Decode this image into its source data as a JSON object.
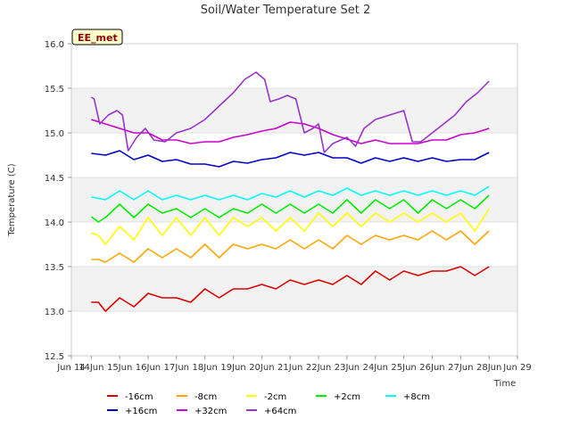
{
  "chart_data": {
    "type": "line",
    "title": "Soil/Water Temperature Set 2",
    "site_label": "EE_met",
    "xlabel": "Time",
    "ylabel": "Temperature (C)",
    "xlim": [
      13.3,
      29.0
    ],
    "ylim": [
      12.5,
      16.0
    ],
    "x_ticks": [
      13.3,
      14,
      15,
      16,
      17,
      18,
      19,
      20,
      21,
      22,
      23,
      24,
      25,
      26,
      27,
      28,
      29
    ],
    "x_tick_labels": [
      "Jun 14",
      "14Jun",
      "15Jun",
      "16Jun",
      "17Jun",
      "18Jun",
      "19Jun",
      "20Jun",
      "21Jun",
      "22Jun",
      "23Jun",
      "24Jun",
      "25Jun",
      "26Jun",
      "27Jun",
      "28Jun",
      "Jun 29"
    ],
    "y_ticks": [
      12.5,
      13.0,
      13.5,
      14.0,
      14.5,
      15.0,
      15.5,
      16.0
    ],
    "y_tick_labels": [
      "12.5",
      "13.0",
      "13.5",
      "14.0",
      "14.5",
      "15.0",
      "15.5",
      "16.0"
    ],
    "grid": "horizontal bands",
    "legend_position": "bottom",
    "series": [
      {
        "name": "-16cm",
        "color": "#dd0000",
        "x": [
          14.0,
          14.25,
          14.5,
          15.0,
          15.5,
          16.0,
          16.5,
          17.0,
          17.5,
          18.0,
          18.5,
          19.0,
          19.5,
          20.0,
          20.5,
          21.0,
          21.5,
          22.0,
          22.5,
          23.0,
          23.5,
          24.0,
          24.5,
          25.0,
          25.5,
          26.0,
          26.5,
          27.0,
          27.5,
          28.0
        ],
        "y": [
          13.1,
          13.1,
          13.0,
          13.15,
          13.05,
          13.2,
          13.15,
          13.15,
          13.1,
          13.25,
          13.15,
          13.25,
          13.25,
          13.3,
          13.25,
          13.35,
          13.3,
          13.35,
          13.3,
          13.4,
          13.3,
          13.45,
          13.35,
          13.45,
          13.4,
          13.45,
          13.45,
          13.5,
          13.4,
          13.5
        ]
      },
      {
        "name": "-8cm",
        "color": "#ffa500",
        "x": [
          14.0,
          14.25,
          14.5,
          15.0,
          15.5,
          16.0,
          16.5,
          17.0,
          17.5,
          18.0,
          18.5,
          19.0,
          19.5,
          20.0,
          20.5,
          21.0,
          21.5,
          22.0,
          22.5,
          23.0,
          23.5,
          24.0,
          24.5,
          25.0,
          25.5,
          26.0,
          26.5,
          27.0,
          27.5,
          28.0
        ],
        "y": [
          13.58,
          13.58,
          13.55,
          13.65,
          13.55,
          13.7,
          13.6,
          13.7,
          13.6,
          13.75,
          13.6,
          13.75,
          13.7,
          13.75,
          13.7,
          13.8,
          13.7,
          13.8,
          13.7,
          13.85,
          13.75,
          13.85,
          13.8,
          13.85,
          13.8,
          13.9,
          13.8,
          13.9,
          13.75,
          13.9
        ]
      },
      {
        "name": "-2cm",
        "color": "#ffff00",
        "x": [
          14.0,
          14.25,
          14.5,
          15.0,
          15.5,
          16.0,
          16.5,
          17.0,
          17.5,
          18.0,
          18.5,
          19.0,
          19.5,
          20.0,
          20.5,
          21.0,
          21.5,
          22.0,
          22.5,
          23.0,
          23.5,
          24.0,
          24.5,
          25.0,
          25.5,
          26.0,
          26.5,
          27.0,
          27.5,
          28.0
        ],
        "y": [
          13.88,
          13.85,
          13.75,
          13.95,
          13.8,
          14.05,
          13.85,
          14.05,
          13.85,
          14.05,
          13.85,
          14.05,
          13.95,
          14.05,
          13.9,
          14.05,
          13.9,
          14.1,
          13.95,
          14.1,
          13.95,
          14.1,
          14.0,
          14.1,
          14.0,
          14.1,
          14.0,
          14.1,
          13.9,
          14.15
        ]
      },
      {
        "name": "+2cm",
        "color": "#00ee00",
        "x": [
          14.0,
          14.25,
          14.5,
          15.0,
          15.5,
          16.0,
          16.5,
          17.0,
          17.5,
          18.0,
          18.5,
          19.0,
          19.5,
          20.0,
          20.5,
          21.0,
          21.5,
          22.0,
          22.5,
          23.0,
          23.5,
          24.0,
          24.5,
          25.0,
          25.5,
          26.0,
          26.5,
          27.0,
          27.5,
          28.0
        ],
        "y": [
          14.06,
          14.0,
          14.05,
          14.2,
          14.05,
          14.2,
          14.1,
          14.15,
          14.05,
          14.15,
          14.05,
          14.15,
          14.1,
          14.2,
          14.1,
          14.2,
          14.1,
          14.2,
          14.1,
          14.25,
          14.1,
          14.25,
          14.15,
          14.25,
          14.1,
          14.25,
          14.15,
          14.25,
          14.15,
          14.3
        ]
      },
      {
        "name": "+8cm",
        "color": "#00ffff",
        "x": [
          14.0,
          14.5,
          15.0,
          15.5,
          16.0,
          16.5,
          17.0,
          17.5,
          18.0,
          18.5,
          19.0,
          19.5,
          20.0,
          20.5,
          21.0,
          21.5,
          22.0,
          22.5,
          23.0,
          23.5,
          24.0,
          24.5,
          25.0,
          25.5,
          26.0,
          26.5,
          27.0,
          27.5,
          28.0
        ],
        "y": [
          14.28,
          14.25,
          14.35,
          14.25,
          14.35,
          14.25,
          14.3,
          14.25,
          14.3,
          14.25,
          14.3,
          14.25,
          14.32,
          14.28,
          14.35,
          14.28,
          14.35,
          14.3,
          14.38,
          14.3,
          14.35,
          14.3,
          14.35,
          14.3,
          14.35,
          14.3,
          14.35,
          14.3,
          14.4
        ]
      },
      {
        "name": "+16cm",
        "color": "#0000cc",
        "x": [
          14.0,
          14.5,
          15.0,
          15.5,
          16.0,
          16.5,
          17.0,
          17.5,
          18.0,
          18.5,
          19.0,
          19.5,
          20.0,
          20.5,
          21.0,
          21.5,
          22.0,
          22.5,
          23.0,
          23.5,
          24.0,
          24.5,
          25.0,
          25.5,
          26.0,
          26.5,
          27.0,
          27.5,
          28.0
        ],
        "y": [
          14.77,
          14.75,
          14.8,
          14.7,
          14.75,
          14.68,
          14.7,
          14.65,
          14.65,
          14.62,
          14.68,
          14.66,
          14.7,
          14.72,
          14.78,
          14.75,
          14.78,
          14.72,
          14.72,
          14.66,
          14.72,
          14.68,
          14.72,
          14.68,
          14.72,
          14.68,
          14.7,
          14.7,
          14.78
        ]
      },
      {
        "name": "+32cm",
        "color": "#cc00cc",
        "x": [
          14.0,
          14.5,
          15.0,
          15.5,
          16.0,
          16.5,
          17.0,
          17.5,
          18.0,
          18.5,
          19.0,
          19.5,
          20.0,
          20.5,
          21.0,
          21.5,
          22.0,
          22.5,
          23.0,
          23.5,
          24.0,
          24.5,
          25.0,
          25.5,
          26.0,
          26.5,
          27.0,
          27.5,
          28.0
        ],
        "y": [
          15.15,
          15.1,
          15.05,
          15.0,
          15.0,
          14.92,
          14.92,
          14.88,
          14.9,
          14.9,
          14.95,
          14.98,
          15.02,
          15.05,
          15.12,
          15.1,
          15.05,
          14.98,
          14.93,
          14.88,
          14.92,
          14.88,
          14.88,
          14.88,
          14.92,
          14.92,
          14.98,
          15.0,
          15.05
        ]
      },
      {
        "name": "+64cm",
        "color": "#9933cc",
        "x": [
          14.0,
          14.1,
          14.3,
          14.6,
          14.9,
          15.1,
          15.3,
          15.6,
          15.9,
          16.2,
          16.6,
          17.0,
          17.5,
          18.0,
          18.5,
          19.0,
          19.4,
          19.8,
          20.1,
          20.3,
          20.6,
          20.9,
          21.2,
          21.5,
          21.8,
          22.0,
          22.2,
          22.5,
          23.0,
          23.3,
          23.6,
          24.0,
          24.5,
          25.0,
          25.3,
          25.6,
          26.0,
          26.4,
          26.8,
          27.2,
          27.6,
          28.0
        ],
        "y": [
          15.4,
          15.38,
          15.1,
          15.2,
          15.25,
          15.2,
          14.8,
          14.95,
          15.05,
          14.92,
          14.9,
          15.0,
          15.05,
          15.15,
          15.3,
          15.45,
          15.6,
          15.68,
          15.6,
          15.35,
          15.38,
          15.42,
          15.38,
          15.0,
          15.05,
          15.1,
          14.78,
          14.88,
          14.95,
          14.85,
          15.05,
          15.15,
          15.2,
          15.25,
          14.9,
          14.9,
          15.0,
          15.1,
          15.2,
          15.35,
          15.45,
          15.58
        ]
      }
    ]
  }
}
